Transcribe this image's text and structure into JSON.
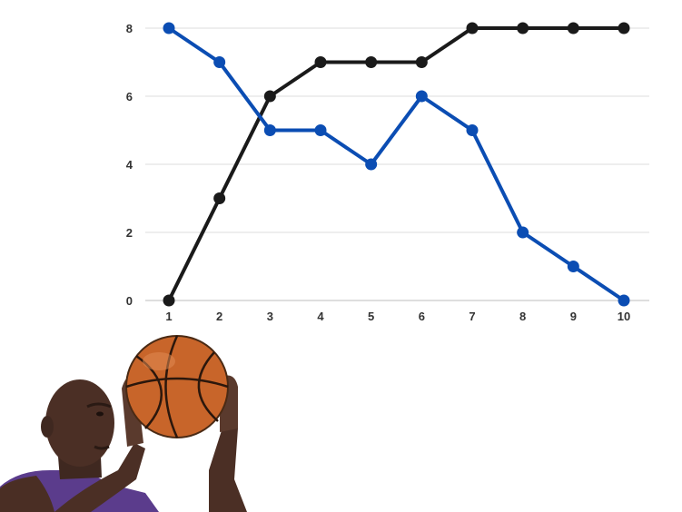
{
  "chart_data": {
    "type": "line",
    "title": "",
    "xlabel": "",
    "ylabel": "",
    "x": [
      1,
      2,
      3,
      4,
      5,
      6,
      7,
      8,
      9,
      10
    ],
    "ylim": [
      0,
      8
    ],
    "yticks": [
      0,
      2,
      4,
      6,
      8
    ],
    "grid": true,
    "legend": "none",
    "series": [
      {
        "color": "#1a1a1a",
        "values": [
          0,
          3,
          6,
          7,
          7,
          7,
          8,
          8,
          8,
          8
        ]
      },
      {
        "color": "#0b4db3",
        "values": [
          8,
          7,
          5,
          5,
          4,
          6,
          5,
          2,
          1,
          0
        ]
      }
    ]
  },
  "image": {
    "subject": "basketball-player-shooting-photo",
    "ball_color": "#c8652a",
    "jersey_color": "#5b3c8c"
  }
}
